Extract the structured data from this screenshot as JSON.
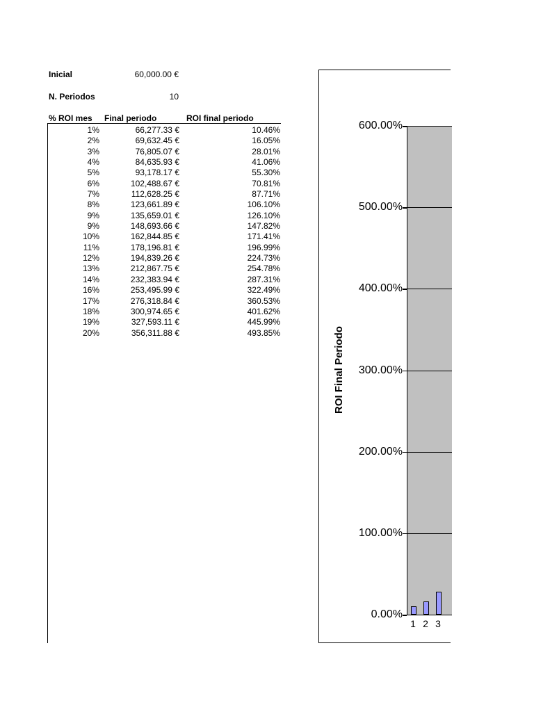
{
  "params": {
    "inicial_label": "Inicial",
    "inicial_value": "60,000.00 €",
    "periodos_label": "N. Periodos",
    "periodos_value": "10"
  },
  "table": {
    "headers": [
      "% ROI mes",
      "Final periodo",
      "ROI final periodo"
    ],
    "rows": [
      [
        "1%",
        "66,277.33 €",
        "10.46%"
      ],
      [
        "2%",
        "69,632.45 €",
        "16.05%"
      ],
      [
        "3%",
        "76,805.07 €",
        "28.01%"
      ],
      [
        "4%",
        "84,635.93 €",
        "41.06%"
      ],
      [
        "5%",
        "93,178.17 €",
        "55.30%"
      ],
      [
        "6%",
        "102,488.67 €",
        "70.81%"
      ],
      [
        "7%",
        "112,628.25 €",
        "87.71%"
      ],
      [
        "8%",
        "123,661.89 €",
        "106.10%"
      ],
      [
        "9%",
        "135,659.01 €",
        "126.10%"
      ],
      [
        "9%",
        "148,693.66 €",
        "147.82%"
      ],
      [
        "10%",
        "162,844.85 €",
        "171.41%"
      ],
      [
        "11%",
        "178,196.81 €",
        "196.99%"
      ],
      [
        "12%",
        "194,839.26 €",
        "224.73%"
      ],
      [
        "13%",
        "212,867.75 €",
        "254.78%"
      ],
      [
        "14%",
        "232,383.94 €",
        "287.31%"
      ],
      [
        "16%",
        "253,495.99 €",
        "322.49%"
      ],
      [
        "17%",
        "276,318.84 €",
        "360.53%"
      ],
      [
        "18%",
        "300,974.65 €",
        "401.62%"
      ],
      [
        "19%",
        "327,593.11 €",
        "445.99%"
      ],
      [
        "20%",
        "356,311.88 €",
        "493.85%"
      ]
    ]
  },
  "chart_data": {
    "type": "bar",
    "title": "",
    "ylabel": "ROI Final Periodo",
    "xlabel": "",
    "categories": [
      "1",
      "2",
      "3"
    ],
    "values": [
      10.46,
      16.05,
      28.01
    ],
    "unit": "%",
    "ylim": [
      0,
      600
    ],
    "ytick_labels": [
      "600.00%",
      "500.00%",
      "400.00%",
      "300.00%",
      "200.00%",
      "100.00%",
      "0.00%"
    ],
    "grid": true,
    "legend_position": "none",
    "plot_bg_color": "#c0c0c0",
    "bar_fill_color": "#9999ff",
    "bar_border_color": "#000000",
    "clipped_right": true
  }
}
